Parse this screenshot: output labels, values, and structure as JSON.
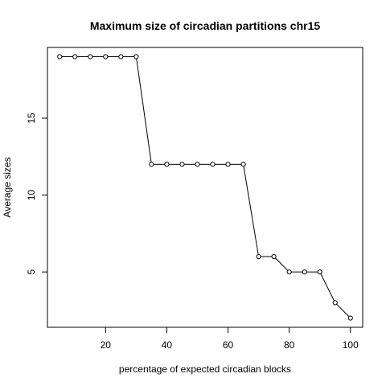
{
  "chart_data": {
    "type": "line",
    "title": "Maximum size of circadian partitions chr15",
    "xlabel": "percentage of expected circadian blocks",
    "ylabel": "Average sizes",
    "xlim": [
      1,
      104
    ],
    "ylim": [
      1.4,
      19.6
    ],
    "xticks": [
      20,
      40,
      60,
      80,
      100
    ],
    "yticks": [
      5,
      10,
      15
    ],
    "grid": false,
    "legend": "none",
    "series": [
      {
        "x": [
          5,
          10,
          15,
          20,
          25,
          30,
          35,
          40,
          45,
          50,
          55,
          60,
          65,
          70,
          75,
          80,
          85,
          90,
          95,
          100
        ],
        "y": [
          19,
          19,
          19,
          19,
          19,
          19,
          12,
          12,
          12,
          12,
          12,
          12,
          12,
          6,
          6,
          5,
          5,
          5,
          3,
          2
        ],
        "color": "#000000",
        "marker": "open-circle"
      }
    ]
  }
}
